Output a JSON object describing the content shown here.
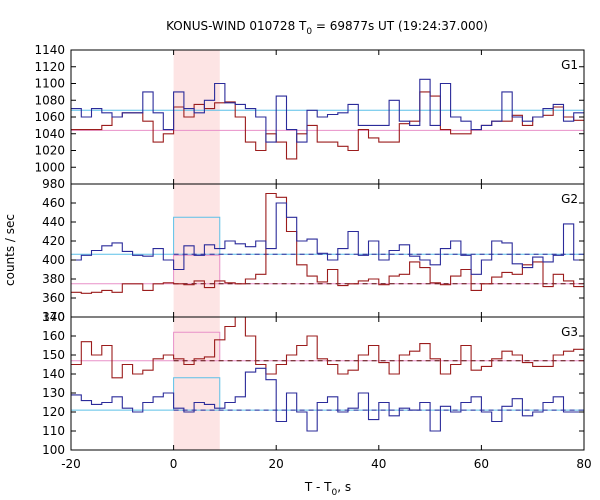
{
  "chart_data": {
    "type": "line",
    "title_main": "KONUS-WIND 010728 T",
    "title_sub": "0",
    "title_rest": " = 69877s UT (19:24:37.000)",
    "xlabel_main": "T - T",
    "xlabel_sub": "0",
    "xlabel_rest": ", s",
    "ylabel": "counts / sec",
    "xlim": [
      -20,
      80
    ],
    "x_ticks": [
      "-20",
      "0",
      "20",
      "40",
      "60",
      "80"
    ],
    "shaded_interval": [
      0,
      9
    ],
    "colors": {
      "light_curve_a": "#9b1c1c",
      "light_curve_b": "#2b2b9a",
      "level_a": "#e890c8",
      "level_b": "#5cc0e8",
      "shade": "#fde4e4"
    },
    "panels": [
      {
        "label": "G1",
        "ylim": [
          980,
          1140
        ],
        "y_ticks": [
          "980",
          "1000",
          "1020",
          "1040",
          "1060",
          "1080",
          "1100",
          "1120",
          "1140"
        ],
        "background_levels": {
          "red": 1044,
          "blue": 1068
        },
        "series": [
          {
            "color": "#9b1c1c",
            "x_start": -20,
            "bin_width": 2,
            "values": [
              1045,
              1045,
              1045,
              1050,
              1060,
              1065,
              1065,
              1055,
              1030,
              1040,
              1072,
              1060,
              1075,
              1070,
              1077,
              1078,
              1060,
              1030,
              1020,
              1040,
              1030,
              1010,
              1040,
              1050,
              1030,
              1030,
              1025,
              1020,
              1045,
              1035,
              1030,
              1030,
              1052,
              1055,
              1090,
              1085,
              1045,
              1040,
              1040,
              1045,
              1050,
              1055,
              1055,
              1062,
              1050,
              1060,
              1062,
              1072,
              1060,
              1056,
              1050
            ]
          },
          {
            "color": "#2b2b9a",
            "x_start": -20,
            "bin_width": 2,
            "values": [
              1070,
              1060,
              1070,
              1065,
              1060,
              1065,
              1065,
              1090,
              1065,
              1045,
              1090,
              1070,
              1065,
              1080,
              1100,
              1077,
              1075,
              1070,
              1060,
              1030,
              1085,
              1045,
              1030,
              1068,
              1060,
              1063,
              1065,
              1075,
              1050,
              1050,
              1050,
              1080,
              1055,
              1050,
              1105,
              1050,
              1100,
              1060,
              1055,
              1045,
              1050,
              1055,
              1090,
              1060,
              1055,
              1060,
              1070,
              1075,
              1055,
              1065,
              1060
            ]
          }
        ]
      },
      {
        "label": "G2",
        "ylim": [
          340,
          480
        ],
        "y_ticks": [
          "340",
          "360",
          "380",
          "400",
          "420",
          "440",
          "460"
        ],
        "background_levels": {
          "red": 375,
          "blue": 406
        },
        "segment_levels": [
          {
            "interval": [
              0,
              9
            ],
            "red": 405,
            "blue": 445
          }
        ],
        "series": [
          {
            "color": "#9b1c1c",
            "x_start": -20,
            "bin_width": 2,
            "values": [
              366,
              365,
              366,
              368,
              366,
              375,
              375,
              368,
              375,
              376,
              375,
              374,
              378,
              371,
              378,
              376,
              375,
              380,
              385,
              470,
              466,
              430,
              395,
              383,
              377,
              390,
              373,
              375,
              378,
              380,
              374,
              383,
              385,
              398,
              392,
              376,
              374,
              383,
              390,
              368,
              375,
              382,
              387,
              385,
              395,
              398,
              372,
              385,
              378,
              372,
              380
            ]
          },
          {
            "color": "#2b2b9a",
            "x_start": -20,
            "bin_width": 2,
            "values": [
              400,
              405,
              410,
              415,
              418,
              409,
              405,
              404,
              412,
              400,
              390,
              415,
              405,
              416,
              412,
              420,
              417,
              414,
              420,
              412,
              460,
              445,
              420,
              422,
              407,
              400,
              412,
              430,
              405,
              420,
              400,
              410,
              416,
              404,
              400,
              395,
              412,
              420,
              405,
              385,
              400,
              420,
              418,
              396,
              392,
              403,
              398,
              405,
              438,
              400,
              395
            ]
          }
        ]
      },
      {
        "label": "G3",
        "ylim": [
          100,
          170
        ],
        "y_ticks": [
          "100",
          "110",
          "120",
          "130",
          "140",
          "150",
          "160",
          "170"
        ],
        "background_levels": {
          "red": 147,
          "blue": 121
        },
        "segment_levels": [
          {
            "interval": [
              0,
              9
            ],
            "red": 162,
            "blue": 138
          }
        ],
        "series": [
          {
            "color": "#9b1c1c",
            "x_start": -20,
            "bin_width": 2,
            "values": [
              145,
              157,
              150,
              155,
              138,
              145,
              140,
              142,
              148,
              150,
              148,
              145,
              148,
              149,
              158,
              165,
              170,
              160,
              145,
              140,
              145,
              150,
              155,
              160,
              148,
              145,
              140,
              142,
              150,
              155,
              146,
              140,
              150,
              152,
              156,
              148,
              140,
              145,
              155,
              142,
              144,
              148,
              152,
              150,
              146,
              144,
              144,
              150,
              152,
              153,
              160
            ]
          },
          {
            "color": "#2b2b9a",
            "x_start": -20,
            "bin_width": 2,
            "values": [
              129,
              126,
              124,
              125,
              128,
              122,
              120,
              125,
              128,
              130,
              122,
              120,
              125,
              124,
              122,
              125,
              128,
              141,
              143,
              137,
              115,
              130,
              120,
              110,
              125,
              128,
              120,
              122,
              130,
              116,
              125,
              118,
              122,
              121,
              125,
              110,
              123,
              120,
              125,
              128,
              120,
              115,
              123,
              127,
              118,
              120,
              125,
              128,
              120,
              120,
              122
            ]
          }
        ]
      }
    ]
  }
}
